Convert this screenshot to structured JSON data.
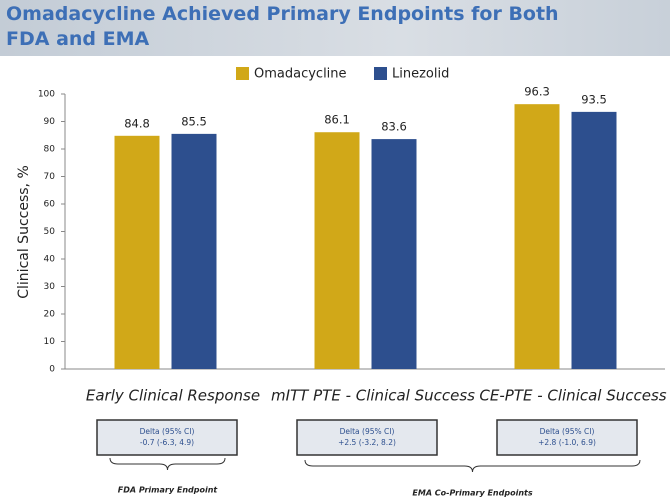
{
  "chart_data": {
    "type": "bar",
    "title": "Omadacycline Achieved Primary Endpoints for Both FDA and EMA",
    "y_label": "Clinical Success, %",
    "categories": [
      "Early Clinical Response",
      "mITT PTE - Clinical Success",
      "CE-PTE - Clinical Success"
    ],
    "series": [
      {
        "name": "Omadacycline",
        "color": "#d1a818",
        "values": [
          84.8,
          86.1,
          96.3
        ]
      },
      {
        "name": "Linezolid",
        "color": "#2d4f8e",
        "values": [
          85.5,
          83.6,
          93.5
        ]
      }
    ],
    "ylim": [
      0,
      100
    ],
    "yticks": [
      0,
      10,
      20,
      30,
      40,
      50,
      60,
      70,
      80,
      90,
      100
    ],
    "annotations": [
      {
        "label": "Delta (95% CI)",
        "text": "-0.7 (-6.3, 4.9)"
      },
      {
        "label": "Delta (95% CI)",
        "text": "+2.5 (-3.2, 8.2)"
      },
      {
        "label": "Delta (95% CI)",
        "text": "+2.8 (-1.0, 6.9)"
      }
    ],
    "brackets": [
      "FDA Primary Endpoint",
      "EMA Co-Primary Endpoints"
    ]
  }
}
